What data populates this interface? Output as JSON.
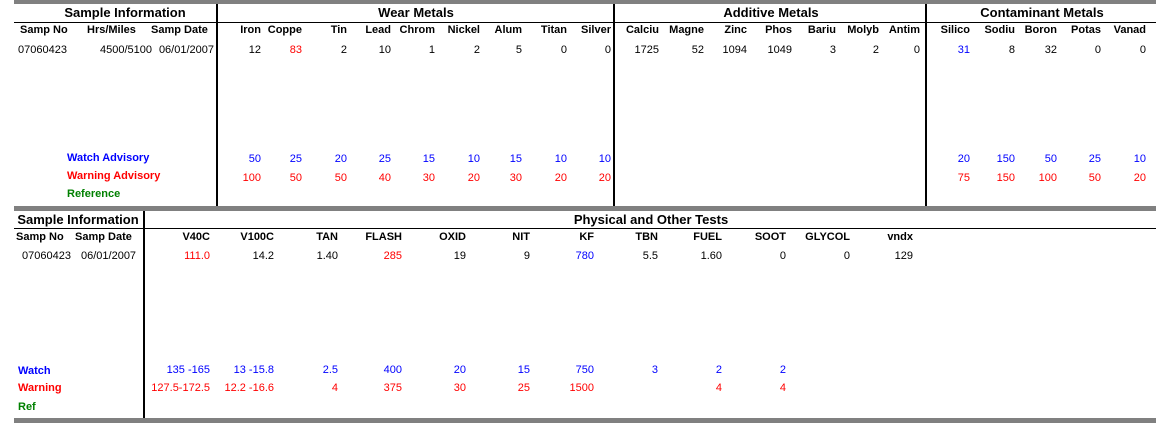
{
  "colors": {
    "watch": "#0000ff",
    "warning": "#ff0000",
    "reference": "#008000"
  },
  "top": {
    "sections": [
      "Sample Information",
      "Wear Metals",
      "Additive Metals",
      "Contaminant Metals"
    ],
    "sample_headers": [
      "Samp No",
      "Hrs/Miles",
      "Samp Date"
    ],
    "sample_values": [
      "07060423",
      "4500/5100",
      "06/01/2007"
    ],
    "wear_headers": [
      "Iron",
      "Coppe",
      "Tin",
      "Lead",
      "Chrom",
      "Nickel",
      "Alum",
      "Titan",
      "Silver"
    ],
    "wear_values": [
      "12",
      "83",
      "2",
      "10",
      "1",
      "2",
      "5",
      "0",
      "0"
    ],
    "additive_headers": [
      "Calciu",
      "Magne",
      "Zinc",
      "Phos",
      "Bariu",
      "Molyb",
      "Antim"
    ],
    "additive_values": [
      "1725",
      "52",
      "1094",
      "1049",
      "3",
      "2",
      "0"
    ],
    "contam_headers": [
      "Silico",
      "Sodiu",
      "Boron",
      "Potas",
      "Vanad"
    ],
    "contam_values": [
      "31",
      "8",
      "32",
      "0",
      "0"
    ],
    "watch_label": "Watch Advisory",
    "warning_label": "Warning Advisory",
    "reference_label": "Reference",
    "wear_watch": [
      "50",
      "25",
      "20",
      "25",
      "15",
      "10",
      "15",
      "10",
      "10"
    ],
    "wear_warning": [
      "100",
      "50",
      "50",
      "40",
      "30",
      "20",
      "30",
      "20",
      "20"
    ],
    "contam_watch": [
      "20",
      "150",
      "50",
      "25",
      "10"
    ],
    "contam_warning": [
      "75",
      "150",
      "100",
      "50",
      "20"
    ]
  },
  "bottom": {
    "sections": [
      "Sample Information",
      "Physical and Other Tests"
    ],
    "sample_headers": [
      "Samp No",
      "Samp Date"
    ],
    "sample_values": [
      "07060423",
      "06/01/2007"
    ],
    "test_headers": [
      "V40C",
      "V100C",
      "TAN",
      "FLASH",
      "OXID",
      "NIT",
      "KF",
      "TBN",
      "FUEL",
      "SOOT",
      "GLYCOL",
      "vndx"
    ],
    "test_values": [
      "111.0",
      "14.2",
      "1.40",
      "285",
      "19",
      "9",
      "780",
      "5.5",
      "1.60",
      "0",
      "0",
      "129"
    ],
    "watch_label": "Watch",
    "warning_label": "Warning",
    "ref_label": "Ref",
    "test_watch": [
      "135 -165",
      "13 -15.8",
      "2.5",
      "400",
      "20",
      "15",
      "750",
      "3",
      "2",
      "2"
    ],
    "test_warning": [
      "127.5-172.5",
      "12.2 -16.6",
      "4",
      "375",
      "30",
      "25",
      "1500",
      "4",
      "4"
    ]
  }
}
